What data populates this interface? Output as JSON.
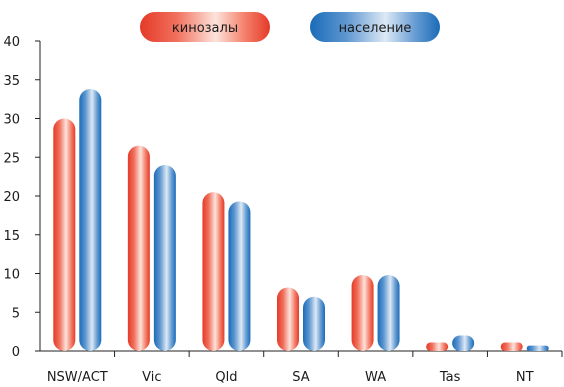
{
  "chart_data": {
    "type": "bar",
    "categories": [
      "NSW/ACT",
      "Vic",
      "Qld",
      "SA",
      "WA",
      "Tas",
      "NT"
    ],
    "series": [
      {
        "name": "кинозалы",
        "color": "#e8412c",
        "values": [
          30,
          26.5,
          20.5,
          8.2,
          9.8,
          1.1,
          1.1
        ]
      },
      {
        "name": "население",
        "color": "#1f73be",
        "values": [
          33.8,
          24,
          19.3,
          7,
          9.8,
          2,
          0.7
        ]
      }
    ],
    "ylim": [
      0,
      40
    ],
    "yticks": [
      0,
      5,
      10,
      15,
      20,
      25,
      30,
      35,
      40
    ],
    "grid": false,
    "legend": "top-center",
    "title": "",
    "xlabel": "",
    "ylabel": ""
  }
}
